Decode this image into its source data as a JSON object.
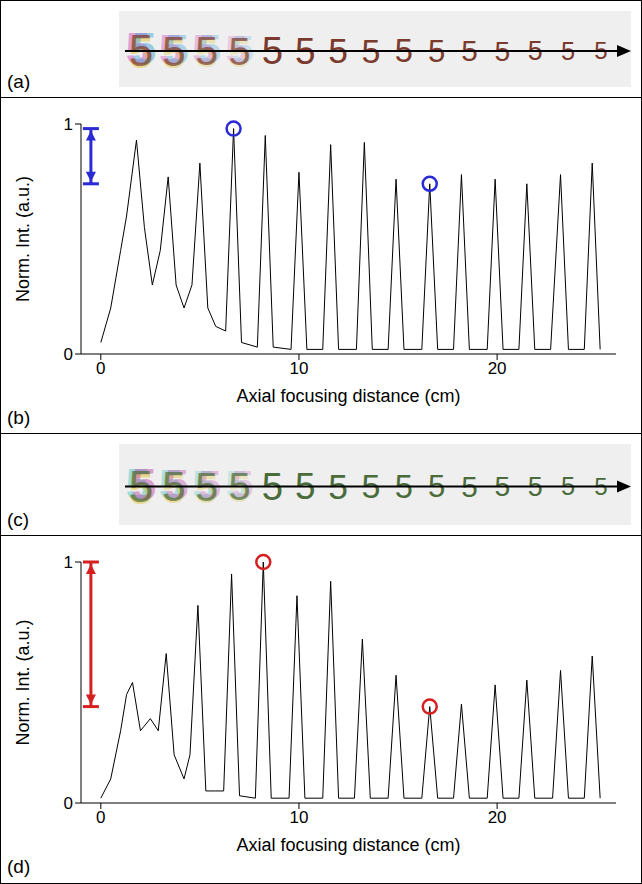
{
  "images": [
    {
      "panel_label": "(a)",
      "glyph": "5",
      "count": 15,
      "glyph_color": "#7a3b2e"
    },
    {
      "panel_label": "(c)",
      "glyph": "5",
      "count": 15,
      "glyph_color": "#4a6b3a"
    }
  ],
  "chart_data": [
    {
      "type": "line",
      "panel_label": "(b)",
      "x_label": "Axial focusing distance (cm)",
      "y_label": "Norm. Int. (a.u.)",
      "xlim": [
        -1,
        26
      ],
      "xticks": [
        0,
        10,
        20
      ],
      "ylim": [
        0,
        1
      ],
      "yticks": [
        0,
        1
      ],
      "color": "#000000",
      "x": [
        0,
        0.5,
        1.0,
        1.3,
        1.8,
        2.2,
        2.6,
        3.0,
        3.4,
        3.8,
        4.2,
        4.6,
        5.0,
        5.4,
        5.8,
        6.3,
        6.7,
        7.1,
        7.9,
        8.3,
        8.7,
        9.6,
        10.0,
        10.4,
        11.2,
        11.6,
        12.0,
        12.9,
        13.3,
        13.7,
        14.5,
        14.9,
        15.3,
        16.2,
        16.6,
        17.0,
        17.8,
        18.2,
        18.6,
        19.5,
        19.9,
        20.3,
        21.1,
        21.5,
        21.9,
        22.7,
        23.2,
        23.6,
        24.4,
        24.8,
        25.2
      ],
      "values": [
        0.05,
        0.2,
        0.45,
        0.6,
        0.93,
        0.55,
        0.3,
        0.45,
        0.77,
        0.3,
        0.2,
        0.3,
        0.83,
        0.2,
        0.12,
        0.1,
        0.98,
        0.05,
        0.03,
        0.95,
        0.03,
        0.02,
        0.79,
        0.02,
        0.02,
        0.91,
        0.02,
        0.02,
        0.92,
        0.02,
        0.02,
        0.76,
        0.02,
        0.02,
        0.74,
        0.02,
        0.02,
        0.78,
        0.02,
        0.02,
        0.76,
        0.02,
        0.02,
        0.74,
        0.02,
        0.02,
        0.78,
        0.02,
        0.02,
        0.83,
        0.02
      ],
      "highlights": {
        "color": "#2a2ad6",
        "marker": "circle",
        "points": [
          {
            "x": 6.7,
            "y": 0.98
          },
          {
            "x": 16.6,
            "y": 0.74
          }
        ],
        "range": [
          0.74,
          0.98
        ]
      }
    },
    {
      "type": "line",
      "panel_label": "(d)",
      "x_label": "Axial focusing distance (cm)",
      "y_label": "Norm. Int. (a.u.)",
      "xlim": [
        -1,
        26
      ],
      "xticks": [
        0,
        10,
        20
      ],
      "ylim": [
        0,
        1
      ],
      "yticks": [
        0,
        1
      ],
      "color": "#000000",
      "x": [
        0,
        0.5,
        1.0,
        1.3,
        1.6,
        2.0,
        2.5,
        2.9,
        3.3,
        3.7,
        4.2,
        4.5,
        4.9,
        5.3,
        5.8,
        6.2,
        6.6,
        7.0,
        7.8,
        8.2,
        8.6,
        9.5,
        9.9,
        10.3,
        11.2,
        11.6,
        12.0,
        12.8,
        13.2,
        13.6,
        14.5,
        14.9,
        15.3,
        16.2,
        16.6,
        17.0,
        17.8,
        18.2,
        18.6,
        19.5,
        19.9,
        20.3,
        21.1,
        21.5,
        21.9,
        22.8,
        23.2,
        23.6,
        24.4,
        24.8,
        25.2
      ],
      "values": [
        0.02,
        0.1,
        0.3,
        0.45,
        0.5,
        0.3,
        0.35,
        0.3,
        0.62,
        0.2,
        0.1,
        0.2,
        0.82,
        0.05,
        0.05,
        0.05,
        0.95,
        0.03,
        0.02,
        1.0,
        0.02,
        0.02,
        0.86,
        0.02,
        0.02,
        0.92,
        0.02,
        0.02,
        0.68,
        0.02,
        0.02,
        0.53,
        0.02,
        0.02,
        0.4,
        0.02,
        0.02,
        0.41,
        0.02,
        0.02,
        0.49,
        0.02,
        0.02,
        0.51,
        0.02,
        0.02,
        0.55,
        0.02,
        0.02,
        0.61,
        0.02
      ],
      "highlights": {
        "color": "#d62020",
        "marker": "circle",
        "points": [
          {
            "x": 8.2,
            "y": 1.0
          },
          {
            "x": 16.6,
            "y": 0.4
          }
        ],
        "range": [
          0.4,
          1.0
        ]
      }
    }
  ]
}
